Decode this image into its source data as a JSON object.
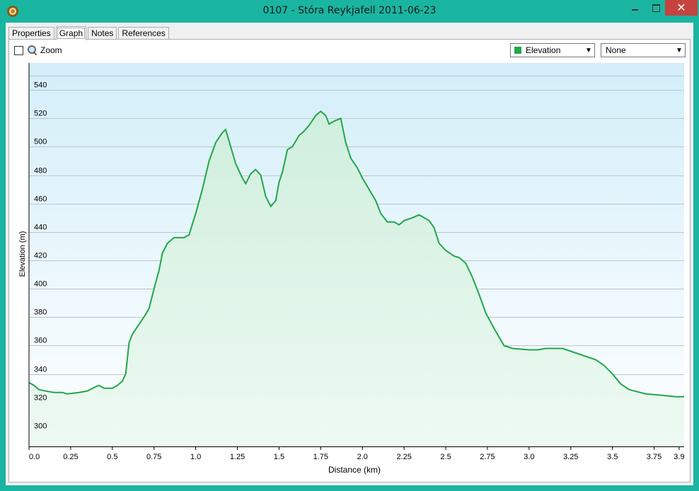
{
  "window": {
    "title": "0107 - Stóra Reykjafell 2011-06-23",
    "minimize_icon": "minimize-icon",
    "maximize_icon": "maximize-icon",
    "close_label": "✕"
  },
  "tabs": [
    {
      "label": "Properties",
      "active": false
    },
    {
      "label": "Graph",
      "active": true
    },
    {
      "label": "Notes",
      "active": false
    },
    {
      "label": "References",
      "active": false
    }
  ],
  "toolbar": {
    "zoom_checked": false,
    "zoom_label": "Zoom",
    "series_select_value": "Elevation",
    "series_color": "#22a64a",
    "secondary_select_value": "None"
  },
  "chart_data": {
    "type": "area",
    "xlabel": "Distance  (km)",
    "ylabel": "Elevation (m)",
    "xlim": [
      0,
      3.93
    ],
    "ylim": [
      289,
      559
    ],
    "xticks": [
      "0.0",
      "0.25",
      "0.5",
      "0.75",
      "1.0",
      "1.25",
      "1.5",
      "1.75",
      "2.0",
      "2.25",
      "2.5",
      "2.75",
      "3.0",
      "3.25",
      "3.5",
      "3.75",
      "3.9"
    ],
    "xtick_values": [
      0,
      0.25,
      0.5,
      0.75,
      1.0,
      1.25,
      1.5,
      1.75,
      2.0,
      2.25,
      2.5,
      2.75,
      3.0,
      3.25,
      3.5,
      3.75,
      3.9
    ],
    "yticks": [
      300,
      320,
      340,
      360,
      380,
      400,
      420,
      440,
      460,
      480,
      500,
      520,
      540
    ],
    "grid": true,
    "line_color": "#22a64a",
    "series": [
      {
        "x": [
          0,
          0.03,
          0.06,
          0.1,
          0.15,
          0.2,
          0.23,
          0.3,
          0.35,
          0.4,
          0.42,
          0.45,
          0.5,
          0.53,
          0.56,
          0.58,
          0.6,
          0.62,
          0.66,
          0.7,
          0.72,
          0.75,
          0.78,
          0.8,
          0.83,
          0.87,
          0.93,
          0.96,
          1.0,
          1.04,
          1.08,
          1.12,
          1.16,
          1.18,
          1.21,
          1.24,
          1.28,
          1.3,
          1.33,
          1.36,
          1.39,
          1.42,
          1.45,
          1.48,
          1.5,
          1.52,
          1.55,
          1.58,
          1.62,
          1.65,
          1.68,
          1.72,
          1.75,
          1.78,
          1.8,
          1.83,
          1.87,
          1.9,
          1.93,
          1.97,
          2.0,
          2.04,
          2.08,
          2.11,
          2.15,
          2.19,
          2.22,
          2.25,
          2.3,
          2.34,
          2.4,
          2.43,
          2.46,
          2.5,
          2.55,
          2.58,
          2.62,
          2.66,
          2.7,
          2.74,
          2.79,
          2.85,
          2.9,
          3.0,
          3.05,
          3.1,
          3.15,
          3.2,
          3.3,
          3.4,
          3.45,
          3.5,
          3.55,
          3.6,
          3.7,
          3.8,
          3.88,
          3.93
        ],
        "y": [
          334,
          332,
          329,
          328,
          327,
          327,
          326,
          327,
          328,
          331,
          332,
          330,
          330,
          332,
          335,
          340,
          362,
          368,
          375,
          382,
          386,
          400,
          413,
          425,
          432,
          436,
          436,
          438,
          453,
          470,
          490,
          503,
          510,
          512,
          500,
          488,
          478,
          474,
          481,
          484,
          480,
          465,
          458,
          462,
          475,
          482,
          498,
          500,
          508,
          511,
          515,
          522,
          525,
          522,
          516,
          518,
          520,
          503,
          492,
          485,
          478,
          470,
          462,
          453,
          447,
          447,
          445,
          448,
          450,
          452,
          448,
          443,
          432,
          427,
          423,
          422,
          418,
          408,
          396,
          383,
          372,
          360,
          358,
          357,
          357,
          358,
          358,
          358,
          354,
          350,
          346,
          340,
          333,
          329,
          326,
          325,
          324,
          324
        ]
      }
    ]
  }
}
